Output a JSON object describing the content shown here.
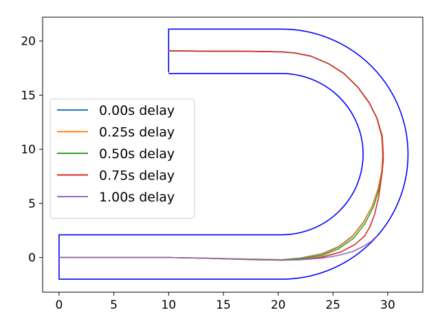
{
  "chart_data": {
    "type": "line",
    "title": "",
    "xlabel": "",
    "ylabel": "",
    "xlim": [
      -1.5,
      33.2
    ],
    "ylim": [
      -3.2,
      22.2
    ],
    "xticks": [
      0,
      5,
      10,
      15,
      20,
      25,
      30
    ],
    "yticks": [
      0,
      5,
      10,
      15,
      20
    ],
    "grid": false,
    "legend_position": "center-left",
    "track": {
      "color": "#0000ff",
      "outer": [
        [
          10,
          17.1
        ],
        [
          10,
          21.1
        ],
        [
          20.3,
          21.1
        ],
        "arc-outer",
        [
          20.3,
          -2.0
        ],
        [
          0,
          -2.0
        ],
        [
          0,
          2.0
        ],
        [
          20.3,
          2.0
        ],
        "arc-inner",
        [
          20.3,
          17.1
        ],
        [
          10,
          17.1
        ]
      ],
      "center": [
        20.3,
        9.55
      ],
      "outer_radius": 11.55,
      "inner_radius": 7.45
    },
    "series": [
      {
        "name": "0.00s delay",
        "color": "#1f77b4",
        "points": [
          [
            0,
            0
          ],
          [
            5,
            0
          ],
          [
            10,
            0
          ],
          [
            13,
            -0.05
          ],
          [
            15,
            -0.1
          ],
          [
            18,
            -0.15
          ],
          [
            20.3,
            -0.2
          ],
          [
            22,
            -0.05
          ],
          [
            24,
            0.35
          ],
          [
            25.5,
            1.0
          ],
          [
            26.8,
            2.0
          ],
          [
            27.8,
            3.3
          ],
          [
            28.6,
            4.8
          ],
          [
            29.1,
            6.3
          ],
          [
            29.45,
            7.9
          ],
          [
            29.55,
            9.5
          ],
          [
            29.45,
            11.2
          ],
          [
            29.0,
            12.9
          ],
          [
            28.3,
            14.3
          ],
          [
            27.3,
            15.7
          ],
          [
            26.0,
            17.0
          ],
          [
            24.6,
            17.9
          ],
          [
            23.0,
            18.6
          ],
          [
            21.5,
            18.9
          ],
          [
            20.3,
            19.0
          ],
          [
            17,
            19.05
          ],
          [
            14,
            19.05
          ],
          [
            10,
            19.1
          ]
        ]
      },
      {
        "name": "0.25s delay",
        "color": "#ff7f0e",
        "points": [
          [
            0,
            0
          ],
          [
            5,
            0
          ],
          [
            10,
            0
          ],
          [
            13,
            -0.05
          ],
          [
            15,
            -0.1
          ],
          [
            18,
            -0.15
          ],
          [
            20.3,
            -0.2
          ],
          [
            22,
            -0.08
          ],
          [
            24,
            0.3
          ],
          [
            25.5,
            0.95
          ],
          [
            26.8,
            1.95
          ],
          [
            27.8,
            3.25
          ],
          [
            28.6,
            4.8
          ],
          [
            29.1,
            6.3
          ],
          [
            29.45,
            7.9
          ],
          [
            29.55,
            9.5
          ],
          [
            29.45,
            11.2
          ],
          [
            29.0,
            12.9
          ],
          [
            28.3,
            14.3
          ],
          [
            27.3,
            15.7
          ],
          [
            26.0,
            17.0
          ],
          [
            24.6,
            17.9
          ],
          [
            23.0,
            18.6
          ],
          [
            21.5,
            18.9
          ],
          [
            20.3,
            19.0
          ],
          [
            17,
            19.05
          ],
          [
            14,
            19.05
          ],
          [
            10,
            19.1
          ]
        ]
      },
      {
        "name": "0.50s delay",
        "color": "#2ca02c",
        "points": [
          [
            0,
            0
          ],
          [
            5,
            0
          ],
          [
            10,
            0
          ],
          [
            13,
            -0.05
          ],
          [
            15,
            -0.1
          ],
          [
            18,
            -0.18
          ],
          [
            20.3,
            -0.22
          ],
          [
            22,
            -0.12
          ],
          [
            24,
            0.2
          ],
          [
            25.5,
            0.8
          ],
          [
            26.9,
            1.8
          ],
          [
            27.9,
            3.1
          ],
          [
            28.7,
            4.7
          ],
          [
            29.2,
            6.3
          ],
          [
            29.5,
            7.9
          ],
          [
            29.6,
            9.5
          ],
          [
            29.5,
            11.2
          ],
          [
            29.0,
            12.9
          ],
          [
            28.3,
            14.3
          ],
          [
            27.3,
            15.7
          ],
          [
            26.0,
            17.0
          ],
          [
            24.6,
            17.9
          ],
          [
            23.0,
            18.6
          ],
          [
            21.5,
            18.9
          ],
          [
            20.3,
            19.0
          ],
          [
            17,
            19.05
          ],
          [
            14,
            19.05
          ],
          [
            10,
            19.1
          ]
        ]
      },
      {
        "name": "0.75s delay",
        "color": "#d62728",
        "points": [
          [
            0,
            0
          ],
          [
            5,
            0
          ],
          [
            10,
            0
          ],
          [
            13,
            -0.05
          ],
          [
            15,
            -0.12
          ],
          [
            18,
            -0.2
          ],
          [
            20.3,
            -0.25
          ],
          [
            22,
            -0.2
          ],
          [
            24,
            0.05
          ],
          [
            25.7,
            0.5
          ],
          [
            27.0,
            1.2
          ],
          [
            27.9,
            2.0
          ],
          [
            28.4,
            2.9
          ],
          [
            28.8,
            4.0
          ],
          [
            29.15,
            5.5
          ],
          [
            29.4,
            7.2
          ],
          [
            29.6,
            9.0
          ],
          [
            29.5,
            11.2
          ],
          [
            29.0,
            12.9
          ],
          [
            28.3,
            14.3
          ],
          [
            27.3,
            15.7
          ],
          [
            26.0,
            17.0
          ],
          [
            24.6,
            17.9
          ],
          [
            23.0,
            18.6
          ],
          [
            21.5,
            18.9
          ],
          [
            20.3,
            19.0
          ],
          [
            17,
            19.05
          ],
          [
            14,
            19.05
          ],
          [
            10,
            19.1
          ]
        ]
      },
      {
        "name": "1.00s delay",
        "color": "#9467bd",
        "points": [
          [
            0,
            0
          ],
          [
            5,
            0
          ],
          [
            10,
            0
          ],
          [
            13,
            -0.05
          ],
          [
            15,
            -0.12
          ],
          [
            18,
            -0.2
          ],
          [
            20.3,
            -0.25
          ],
          [
            22,
            -0.2
          ],
          [
            24,
            -0.05
          ],
          [
            25.5,
            0.2
          ],
          [
            26.8,
            0.55
          ],
          [
            27.8,
            1.05
          ],
          [
            28.5,
            1.5
          ],
          [
            29.0,
            2.0
          ]
        ]
      }
    ]
  }
}
